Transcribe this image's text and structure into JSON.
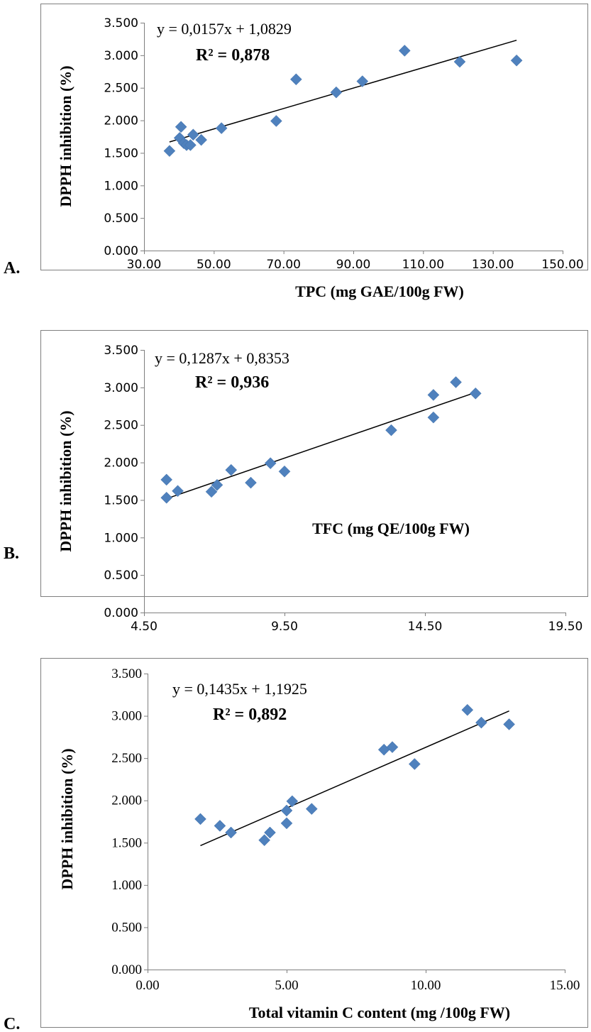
{
  "chart_data": [
    {
      "type": "scatter",
      "panel_label": "A.",
      "xlabel": "TPC (mg GAE/100g FW)",
      "ylabel": "DPPH inhibition (%)",
      "equation": "y = 0,0157x + 1,0829",
      "r2": "R² = 0,878",
      "xlim": [
        30,
        150
      ],
      "ylim": [
        0,
        3.5
      ],
      "x_ticks": [
        "30.00",
        "50.00",
        "70.00",
        "90.00",
        "110.00",
        "130.00",
        "150.00"
      ],
      "y_ticks": [
        "0.000",
        "0.500",
        "1.000",
        "1.500",
        "2.000",
        "2.500",
        "3.000",
        "3.500"
      ],
      "trendline": {
        "slope": 0.0157,
        "intercept": 1.0829,
        "x_range": [
          37.3,
          136.8
        ]
      },
      "points": [
        {
          "x": 37.3,
          "y": 1.53
        },
        {
          "x": 40.2,
          "y": 1.73
        },
        {
          "x": 40.6,
          "y": 1.9
        },
        {
          "x": 41.4,
          "y": 1.65
        },
        {
          "x": 42.2,
          "y": 1.62
        },
        {
          "x": 43.3,
          "y": 1.62
        },
        {
          "x": 44.1,
          "y": 1.78
        },
        {
          "x": 46.4,
          "y": 1.7
        },
        {
          "x": 52.2,
          "y": 1.88
        },
        {
          "x": 67.9,
          "y": 1.99
        },
        {
          "x": 73.6,
          "y": 2.63
        },
        {
          "x": 85.1,
          "y": 2.43
        },
        {
          "x": 92.6,
          "y": 2.6
        },
        {
          "x": 104.7,
          "y": 3.07
        },
        {
          "x": 120.5,
          "y": 2.9
        },
        {
          "x": 136.8,
          "y": 2.92
        }
      ]
    },
    {
      "type": "scatter",
      "panel_label": "B.",
      "xlabel": "TFC (mg QE/100g FW)",
      "ylabel": "DPPH inhibition  (%)",
      "equation": "y = 0,1287x + 0,8353",
      "r2": "R² = 0,936",
      "xlim": [
        4.5,
        19.5
      ],
      "ylim": [
        0,
        3.5
      ],
      "x_ticks": [
        "4.50",
        "9.50",
        "14.50",
        "19.50"
      ],
      "y_ticks": [
        "0.000",
        "0.500",
        "1.000",
        "1.500",
        "2.000",
        "2.500",
        "3.000",
        "3.500"
      ],
      "trendline": {
        "slope": 0.1287,
        "intercept": 0.8353,
        "x_range": [
          5.3,
          16.3
        ]
      },
      "points": [
        {
          "x": 5.3,
          "y": 1.53
        },
        {
          "x": 5.3,
          "y": 1.77
        },
        {
          "x": 5.7,
          "y": 1.62
        },
        {
          "x": 6.9,
          "y": 1.61
        },
        {
          "x": 7.1,
          "y": 1.7
        },
        {
          "x": 7.6,
          "y": 1.9
        },
        {
          "x": 8.3,
          "y": 1.73
        },
        {
          "x": 9.0,
          "y": 1.99
        },
        {
          "x": 9.5,
          "y": 1.88
        },
        {
          "x": 13.3,
          "y": 2.43
        },
        {
          "x": 14.8,
          "y": 2.6
        },
        {
          "x": 14.8,
          "y": 2.9
        },
        {
          "x": 15.6,
          "y": 3.07
        },
        {
          "x": 16.3,
          "y": 2.92
        }
      ]
    },
    {
      "type": "scatter",
      "panel_label": "C.",
      "xlabel": "Total vitamin C content (mg /100g FW)",
      "ylabel": "DPPH inhibition (%)",
      "equation": "y = 0,1435x + 1,1925",
      "r2": "R² = 0,892",
      "xlim": [
        0,
        15
      ],
      "ylim": [
        0,
        3.5
      ],
      "x_ticks": [
        "0.00",
        "5.00",
        "10.00",
        "15.00"
      ],
      "y_ticks": [
        "0.000",
        "0.500",
        "1.000",
        "1.500",
        "2.000",
        "2.500",
        "3.000",
        "3.500"
      ],
      "trendline": {
        "slope": 0.1435,
        "intercept": 1.1925,
        "x_range": [
          1.9,
          13.0
        ]
      },
      "points": [
        {
          "x": 1.9,
          "y": 1.78
        },
        {
          "x": 2.6,
          "y": 1.7
        },
        {
          "x": 3.0,
          "y": 1.62
        },
        {
          "x": 4.2,
          "y": 1.53
        },
        {
          "x": 4.4,
          "y": 1.62
        },
        {
          "x": 5.0,
          "y": 1.73
        },
        {
          "x": 5.0,
          "y": 1.88
        },
        {
          "x": 5.2,
          "y": 1.99
        },
        {
          "x": 5.9,
          "y": 1.9
        },
        {
          "x": 8.5,
          "y": 2.6
        },
        {
          "x": 8.8,
          "y": 2.63
        },
        {
          "x": 9.6,
          "y": 2.43
        },
        {
          "x": 11.5,
          "y": 3.07
        },
        {
          "x": 12.0,
          "y": 2.92
        },
        {
          "x": 13.0,
          "y": 2.9
        }
      ]
    }
  ]
}
